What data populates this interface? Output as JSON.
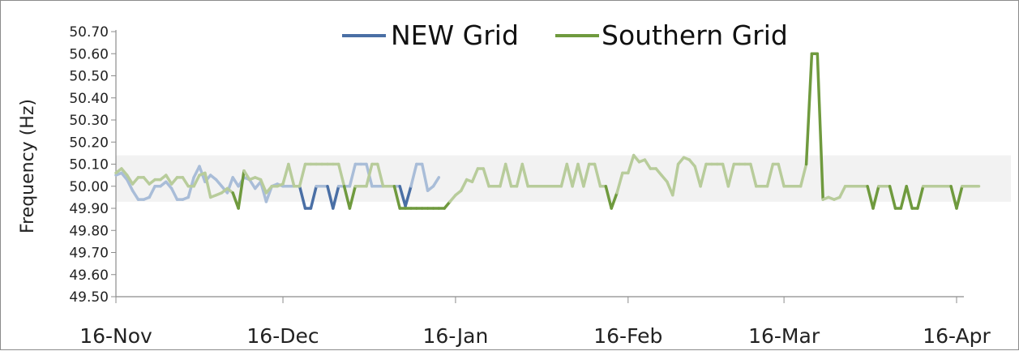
{
  "chart_data": {
    "type": "line",
    "title": "",
    "xlabel": "",
    "ylabel": "Frequency (Hz)",
    "ylim": [
      49.5,
      50.7
    ],
    "yticks": [
      "50.70",
      "50.60",
      "50.50",
      "50.40",
      "50.30",
      "50.20",
      "50.10",
      "50.00",
      "49.90",
      "49.80",
      "49.70",
      "49.60",
      "49.50"
    ],
    "xlim": [
      "2010-11-16",
      "2011-04-16"
    ],
    "xticks": [
      {
        "date": "2010-11-16",
        "label": "16-Nov"
      },
      {
        "date": "2010-12-16",
        "label": "16-Dec"
      },
      {
        "date": "2011-01-16",
        "label": "16-Jan"
      },
      {
        "date": "2011-02-16",
        "label": "16-Feb"
      },
      {
        "date": "2011-03-16",
        "label": "16-Mar"
      },
      {
        "date": "2011-04-16",
        "label": "16-Apr"
      }
    ],
    "band": {
      "ymin": 49.93,
      "ymax": 50.14,
      "color": "#f2f2f2"
    },
    "legend_position": "top",
    "series": [
      {
        "name": "NEW Grid",
        "color": "#4a6fa5",
        "faded_color": "#a9bdd8",
        "points": [
          [
            "2010-11-16",
            50.05
          ],
          [
            "2010-11-17",
            50.06
          ],
          [
            "2010-11-18",
            50.03
          ],
          [
            "2010-11-19",
            49.98
          ],
          [
            "2010-11-20",
            49.94
          ],
          [
            "2010-11-21",
            49.94
          ],
          [
            "2010-11-22",
            49.95
          ],
          [
            "2010-11-23",
            50.0
          ],
          [
            "2010-11-24",
            50.0
          ],
          [
            "2010-11-25",
            50.02
          ],
          [
            "2010-11-26",
            49.99
          ],
          [
            "2010-11-27",
            49.94
          ],
          [
            "2010-11-28",
            49.94
          ],
          [
            "2010-11-29",
            49.95
          ],
          [
            "2010-11-30",
            50.04
          ],
          [
            "2010-12-01",
            50.09
          ],
          [
            "2010-12-02",
            50.02
          ],
          [
            "2010-12-03",
            50.05
          ],
          [
            "2010-12-04",
            50.03
          ],
          [
            "2010-12-05",
            50.0
          ],
          [
            "2010-12-06",
            49.97
          ],
          [
            "2010-12-07",
            50.04
          ],
          [
            "2010-12-08",
            50.0
          ],
          [
            "2010-12-09",
            50.04
          ],
          [
            "2010-12-10",
            50.03
          ],
          [
            "2010-12-11",
            49.99
          ],
          [
            "2010-12-12",
            50.02
          ],
          [
            "2010-12-13",
            49.93
          ],
          [
            "2010-12-14",
            50.0
          ],
          [
            "2010-12-15",
            50.01
          ],
          [
            "2010-12-16",
            50.0
          ],
          [
            "2010-12-17",
            50.0
          ],
          [
            "2010-12-18",
            50.0
          ],
          [
            "2010-12-19",
            50.0
          ],
          [
            "2010-12-20",
            49.9
          ],
          [
            "2010-12-21",
            49.9
          ],
          [
            "2010-12-22",
            50.0
          ],
          [
            "2010-12-23",
            50.0
          ],
          [
            "2010-12-24",
            50.0
          ],
          [
            "2010-12-25",
            49.9
          ],
          [
            "2010-12-26",
            50.0
          ],
          [
            "2010-12-27",
            50.0
          ],
          [
            "2010-12-28",
            50.0
          ],
          [
            "2010-12-29",
            50.1
          ],
          [
            "2010-12-30",
            50.1
          ],
          [
            "2010-12-31",
            50.1
          ],
          [
            "2011-01-01",
            50.0
          ],
          [
            "2011-01-02",
            50.0
          ],
          [
            "2011-01-03",
            50.0
          ],
          [
            "2011-01-04",
            50.0
          ],
          [
            "2011-01-05",
            50.0
          ],
          [
            "2011-01-06",
            50.0
          ],
          [
            "2011-01-07",
            49.91
          ],
          [
            "2011-01-08",
            50.0
          ],
          [
            "2011-01-09",
            50.1
          ],
          [
            "2011-01-10",
            50.1
          ],
          [
            "2011-01-11",
            49.98
          ],
          [
            "2011-01-12",
            50.0
          ],
          [
            "2011-01-13",
            50.04
          ]
        ]
      },
      {
        "name": "Southern Grid",
        "color": "#6f9a3e",
        "faded_color": "#b8cc9b",
        "points": [
          [
            "2010-11-16",
            50.06
          ],
          [
            "2010-11-17",
            50.08
          ],
          [
            "2010-11-18",
            50.05
          ],
          [
            "2010-11-19",
            50.01
          ],
          [
            "2010-11-20",
            50.04
          ],
          [
            "2010-11-21",
            50.04
          ],
          [
            "2010-11-22",
            50.01
          ],
          [
            "2010-11-23",
            50.03
          ],
          [
            "2010-11-24",
            50.03
          ],
          [
            "2010-11-25",
            50.05
          ],
          [
            "2010-11-26",
            50.01
          ],
          [
            "2010-11-27",
            50.04
          ],
          [
            "2010-11-28",
            50.04
          ],
          [
            "2010-11-29",
            50.0
          ],
          [
            "2010-11-30",
            50.0
          ],
          [
            "2010-12-01",
            50.05
          ],
          [
            "2010-12-02",
            50.06
          ],
          [
            "2010-12-03",
            49.95
          ],
          [
            "2010-12-04",
            49.96
          ],
          [
            "2010-12-05",
            49.97
          ],
          [
            "2010-12-06",
            49.99
          ],
          [
            "2010-12-07",
            49.97
          ],
          [
            "2010-12-08",
            49.9
          ],
          [
            "2010-12-09",
            50.07
          ],
          [
            "2010-12-10",
            50.03
          ],
          [
            "2010-12-11",
            50.04
          ],
          [
            "2010-12-12",
            50.03
          ],
          [
            "2010-12-13",
            49.97
          ],
          [
            "2010-12-14",
            50.0
          ],
          [
            "2010-12-15",
            50.0
          ],
          [
            "2010-12-16",
            50.01
          ],
          [
            "2010-12-17",
            50.1
          ],
          [
            "2010-12-18",
            50.0
          ],
          [
            "2010-12-19",
            50.0
          ],
          [
            "2010-12-20",
            50.1
          ],
          [
            "2010-12-21",
            50.1
          ],
          [
            "2010-12-22",
            50.1
          ],
          [
            "2010-12-23",
            50.1
          ],
          [
            "2010-12-24",
            50.1
          ],
          [
            "2010-12-25",
            50.1
          ],
          [
            "2010-12-26",
            50.1
          ],
          [
            "2010-12-27",
            50.0
          ],
          [
            "2010-12-28",
            49.9
          ],
          [
            "2010-12-29",
            50.0
          ],
          [
            "2010-12-30",
            50.0
          ],
          [
            "2010-12-31",
            50.0
          ],
          [
            "2011-01-01",
            50.1
          ],
          [
            "2011-01-02",
            50.1
          ],
          [
            "2011-01-03",
            50.0
          ],
          [
            "2011-01-04",
            50.0
          ],
          [
            "2011-01-05",
            50.0
          ],
          [
            "2011-01-06",
            49.9
          ],
          [
            "2011-01-07",
            49.9
          ],
          [
            "2011-01-08",
            49.9
          ],
          [
            "2011-01-09",
            49.9
          ],
          [
            "2011-01-10",
            49.9
          ],
          [
            "2011-01-11",
            49.9
          ],
          [
            "2011-01-12",
            49.9
          ],
          [
            "2011-01-13",
            49.9
          ],
          [
            "2011-01-14",
            49.9
          ],
          [
            "2011-01-15",
            49.93
          ],
          [
            "2011-01-16",
            49.96
          ],
          [
            "2011-01-17",
            49.98
          ],
          [
            "2011-01-18",
            50.03
          ],
          [
            "2011-01-19",
            50.02
          ],
          [
            "2011-01-20",
            50.08
          ],
          [
            "2011-01-21",
            50.08
          ],
          [
            "2011-01-22",
            50.0
          ],
          [
            "2011-01-23",
            50.0
          ],
          [
            "2011-01-24",
            50.0
          ],
          [
            "2011-01-25",
            50.1
          ],
          [
            "2011-01-26",
            50.0
          ],
          [
            "2011-01-27",
            50.0
          ],
          [
            "2011-01-28",
            50.1
          ],
          [
            "2011-01-29",
            50.0
          ],
          [
            "2011-01-30",
            50.0
          ],
          [
            "2011-01-31",
            50.0
          ],
          [
            "2011-02-01",
            50.0
          ],
          [
            "2011-02-02",
            50.0
          ],
          [
            "2011-02-03",
            50.0
          ],
          [
            "2011-02-04",
            50.0
          ],
          [
            "2011-02-05",
            50.1
          ],
          [
            "2011-02-06",
            50.0
          ],
          [
            "2011-02-07",
            50.1
          ],
          [
            "2011-02-08",
            50.0
          ],
          [
            "2011-02-09",
            50.1
          ],
          [
            "2011-02-10",
            50.1
          ],
          [
            "2011-02-11",
            50.0
          ],
          [
            "2011-02-12",
            50.0
          ],
          [
            "2011-02-13",
            49.9
          ],
          [
            "2011-02-14",
            49.97
          ],
          [
            "2011-02-15",
            50.06
          ],
          [
            "2011-02-16",
            50.06
          ],
          [
            "2011-02-17",
            50.14
          ],
          [
            "2011-02-18",
            50.11
          ],
          [
            "2011-02-19",
            50.12
          ],
          [
            "2011-02-20",
            50.08
          ],
          [
            "2011-02-21",
            50.08
          ],
          [
            "2011-02-22",
            50.05
          ],
          [
            "2011-02-23",
            50.02
          ],
          [
            "2011-02-24",
            49.96
          ],
          [
            "2011-02-25",
            50.1
          ],
          [
            "2011-02-26",
            50.13
          ],
          [
            "2011-02-27",
            50.12
          ],
          [
            "2011-02-28",
            50.09
          ],
          [
            "2011-03-01",
            50.0
          ],
          [
            "2011-03-02",
            50.1
          ],
          [
            "2011-03-03",
            50.1
          ],
          [
            "2011-03-04",
            50.1
          ],
          [
            "2011-03-05",
            50.1
          ],
          [
            "2011-03-06",
            50.0
          ],
          [
            "2011-03-07",
            50.1
          ],
          [
            "2011-03-08",
            50.1
          ],
          [
            "2011-03-09",
            50.1
          ],
          [
            "2011-03-10",
            50.1
          ],
          [
            "2011-03-11",
            50.0
          ],
          [
            "2011-03-12",
            50.0
          ],
          [
            "2011-03-13",
            50.0
          ],
          [
            "2011-03-14",
            50.1
          ],
          [
            "2011-03-15",
            50.1
          ],
          [
            "2011-03-16",
            50.0
          ],
          [
            "2011-03-17",
            50.0
          ],
          [
            "2011-03-18",
            50.0
          ],
          [
            "2011-03-19",
            50.0
          ],
          [
            "2011-03-20",
            50.1
          ],
          [
            "2011-03-21",
            50.6
          ],
          [
            "2011-03-22",
            50.6
          ],
          [
            "2011-03-23",
            49.94
          ],
          [
            "2011-03-24",
            49.95
          ],
          [
            "2011-03-25",
            49.94
          ],
          [
            "2011-03-26",
            49.95
          ],
          [
            "2011-03-27",
            50.0
          ],
          [
            "2011-03-28",
            50.0
          ],
          [
            "2011-03-29",
            50.0
          ],
          [
            "2011-03-30",
            50.0
          ],
          [
            "2011-03-31",
            50.0
          ],
          [
            "2011-04-01",
            49.9
          ],
          [
            "2011-04-02",
            50.0
          ],
          [
            "2011-04-03",
            50.0
          ],
          [
            "2011-04-04",
            50.0
          ],
          [
            "2011-04-05",
            49.9
          ],
          [
            "2011-04-06",
            49.9
          ],
          [
            "2011-04-07",
            50.0
          ],
          [
            "2011-04-08",
            49.9
          ],
          [
            "2011-04-09",
            49.9
          ],
          [
            "2011-04-10",
            50.0
          ],
          [
            "2011-04-11",
            50.0
          ],
          [
            "2011-04-12",
            50.0
          ],
          [
            "2011-04-13",
            50.0
          ],
          [
            "2011-04-14",
            50.0
          ],
          [
            "2011-04-15",
            50.0
          ],
          [
            "2011-04-16",
            49.9
          ],
          [
            "2011-04-17",
            50.0
          ],
          [
            "2011-04-18",
            50.0
          ],
          [
            "2011-04-19",
            50.0
          ],
          [
            "2011-04-20",
            50.0
          ]
        ]
      }
    ]
  }
}
